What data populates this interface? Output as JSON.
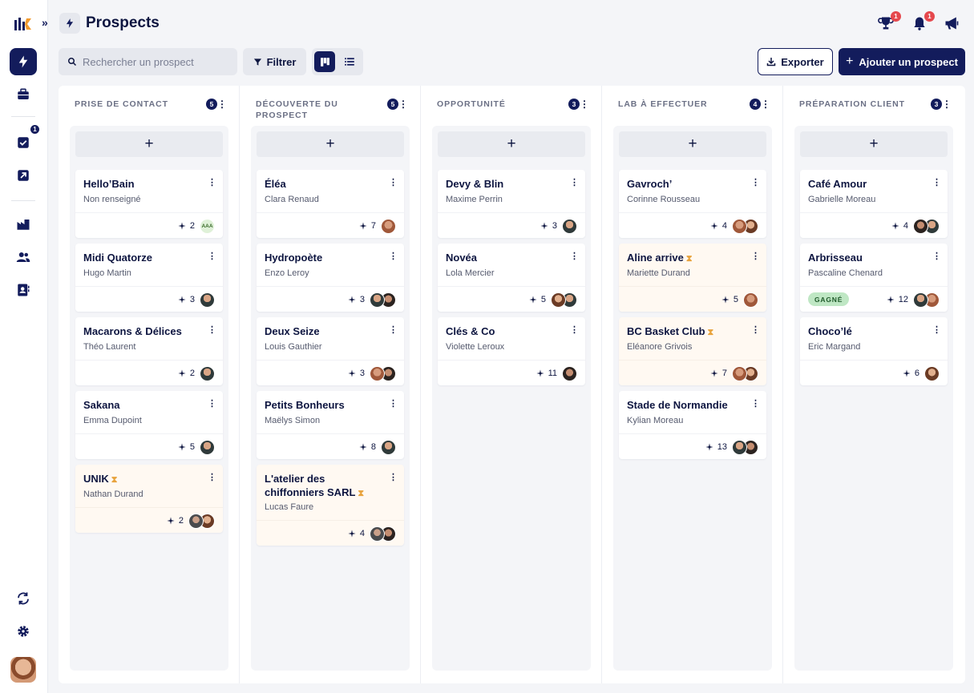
{
  "header": {
    "title": "Prospects",
    "notifications": [
      {
        "icon": "trophy-icon",
        "badge": "1"
      },
      {
        "icon": "bell-icon",
        "badge": "1"
      },
      {
        "icon": "megaphone-icon",
        "badge": ""
      }
    ]
  },
  "sidebar": {
    "items": [
      {
        "icon": "lightning-icon",
        "active": true,
        "badge": ""
      },
      {
        "icon": "briefcase-icon",
        "active": false,
        "badge": ""
      },
      {
        "icon": "checkbox-icon",
        "active": false,
        "badge": "1"
      },
      {
        "icon": "arrow-up-right-icon",
        "active": false,
        "badge": ""
      },
      {
        "icon": "factory-icon",
        "active": false,
        "badge": ""
      },
      {
        "icon": "users-icon",
        "active": false,
        "badge": ""
      },
      {
        "icon": "contact-book-icon",
        "active": false,
        "badge": ""
      },
      {
        "icon": "sync-icon",
        "active": false,
        "badge": ""
      },
      {
        "icon": "gear-icon",
        "active": false,
        "badge": ""
      }
    ]
  },
  "toolbar": {
    "search_placeholder": "Rechercher un prospect",
    "filter_label": "Filtrer",
    "export_label": "Exporter",
    "add_label": "Ajouter un prospect",
    "view_mode": "kanban"
  },
  "colors": {
    "primary": "#131c5c",
    "pending_bg": "#fff9f2",
    "hourglass": "#e8a33d",
    "won": "#bfe7c4",
    "badge_red": "#e5484d"
  },
  "columns": [
    {
      "title": "PRISE DE CONTACT",
      "count": "5",
      "cards": [
        {
          "name": "Hello’Bain",
          "contact": "Non renseigné",
          "metric": "2",
          "avatars": [
            "AAA"
          ],
          "pending": false,
          "status": ""
        },
        {
          "name": "Midi Quatorze",
          "contact": "Hugo Martin",
          "metric": "3",
          "avatars": [
            "a1"
          ],
          "pending": false,
          "status": ""
        },
        {
          "name": "Macarons & Délices",
          "contact": "Théo Laurent",
          "metric": "2",
          "avatars": [
            "a1"
          ],
          "pending": false,
          "status": ""
        },
        {
          "name": "Sakana",
          "contact": "Emma Dupoint",
          "metric": "5",
          "avatars": [
            "a1"
          ],
          "pending": false,
          "status": ""
        },
        {
          "name": "UNIK",
          "contact": "Nathan Durand",
          "metric": "2",
          "avatars": [
            "a3",
            "a2"
          ],
          "pending": true,
          "status": ""
        }
      ]
    },
    {
      "title": "DÉCOUVERTE DU PROSPECT",
      "count": "5",
      "cards": [
        {
          "name": "Éléa",
          "contact": "Clara Renaud",
          "metric": "7",
          "avatars": [
            "a4"
          ],
          "pending": false,
          "status": ""
        },
        {
          "name": "Hydropoète",
          "contact": "Enzo Leroy",
          "metric": "3",
          "avatars": [
            "a1",
            "a5"
          ],
          "pending": false,
          "status": ""
        },
        {
          "name": "Deux Seize",
          "contact": "Louis Gauthier",
          "metric": "3",
          "avatars": [
            "a4",
            "a5"
          ],
          "pending": false,
          "status": ""
        },
        {
          "name": "Petits Bonheurs",
          "contact": "Maëlys Simon",
          "metric": "8",
          "avatars": [
            "a1"
          ],
          "pending": false,
          "status": ""
        },
        {
          "name": "L'atelier des chiffonniers SARL",
          "contact": "Lucas Faure",
          "metric": "4",
          "avatars": [
            "a3",
            "a5"
          ],
          "pending": true,
          "status": ""
        }
      ]
    },
    {
      "title": "OPPORTUNITÉ",
      "count": "3",
      "cards": [
        {
          "name": "Devy & Blin",
          "contact": "Maxime Perrin",
          "metric": "3",
          "avatars": [
            "a1"
          ],
          "pending": false,
          "status": ""
        },
        {
          "name": "Novéa",
          "contact": "Lola Mercier",
          "metric": "5",
          "avatars": [
            "a2",
            "a1"
          ],
          "pending": false,
          "status": ""
        },
        {
          "name": "Clés & Co",
          "contact": "Violette Leroux",
          "metric": "11",
          "avatars": [
            "a5"
          ],
          "pending": false,
          "status": ""
        }
      ]
    },
    {
      "title": "LAB À EFFECTUER",
      "count": "4",
      "cards": [
        {
          "name": "Gavroch’",
          "contact": "Corinne Rousseau",
          "metric": "4",
          "avatars": [
            "a4",
            "a2"
          ],
          "pending": false,
          "status": ""
        },
        {
          "name": "Aline arrive",
          "contact": "Mariette Durand",
          "metric": "5",
          "avatars": [
            "a4"
          ],
          "pending": true,
          "status": ""
        },
        {
          "name": "BC Basket Club",
          "contact": "Eléanore Grivois",
          "metric": "7",
          "avatars": [
            "a4",
            "a2"
          ],
          "pending": true,
          "status": ""
        },
        {
          "name": "Stade de Normandie",
          "contact": "Kylian Moreau",
          "metric": "13",
          "avatars": [
            "a1",
            "a5"
          ],
          "pending": false,
          "status": ""
        }
      ]
    },
    {
      "title": "PRÉPARATION CLIENT",
      "count": "3",
      "cards": [
        {
          "name": "Café Amour",
          "contact": "Gabrielle Moreau",
          "metric": "4",
          "avatars": [
            "a5",
            "a1"
          ],
          "pending": false,
          "status": ""
        },
        {
          "name": "Arbrisseau",
          "contact": "Pascaline Chenard",
          "metric": "12",
          "avatars": [
            "a1",
            "a4"
          ],
          "pending": false,
          "status": "GAGNÉ"
        },
        {
          "name": "Choco’lé",
          "contact": "Eric Margand",
          "metric": "6",
          "avatars": [
            "a2"
          ],
          "pending": false,
          "status": ""
        }
      ]
    }
  ]
}
